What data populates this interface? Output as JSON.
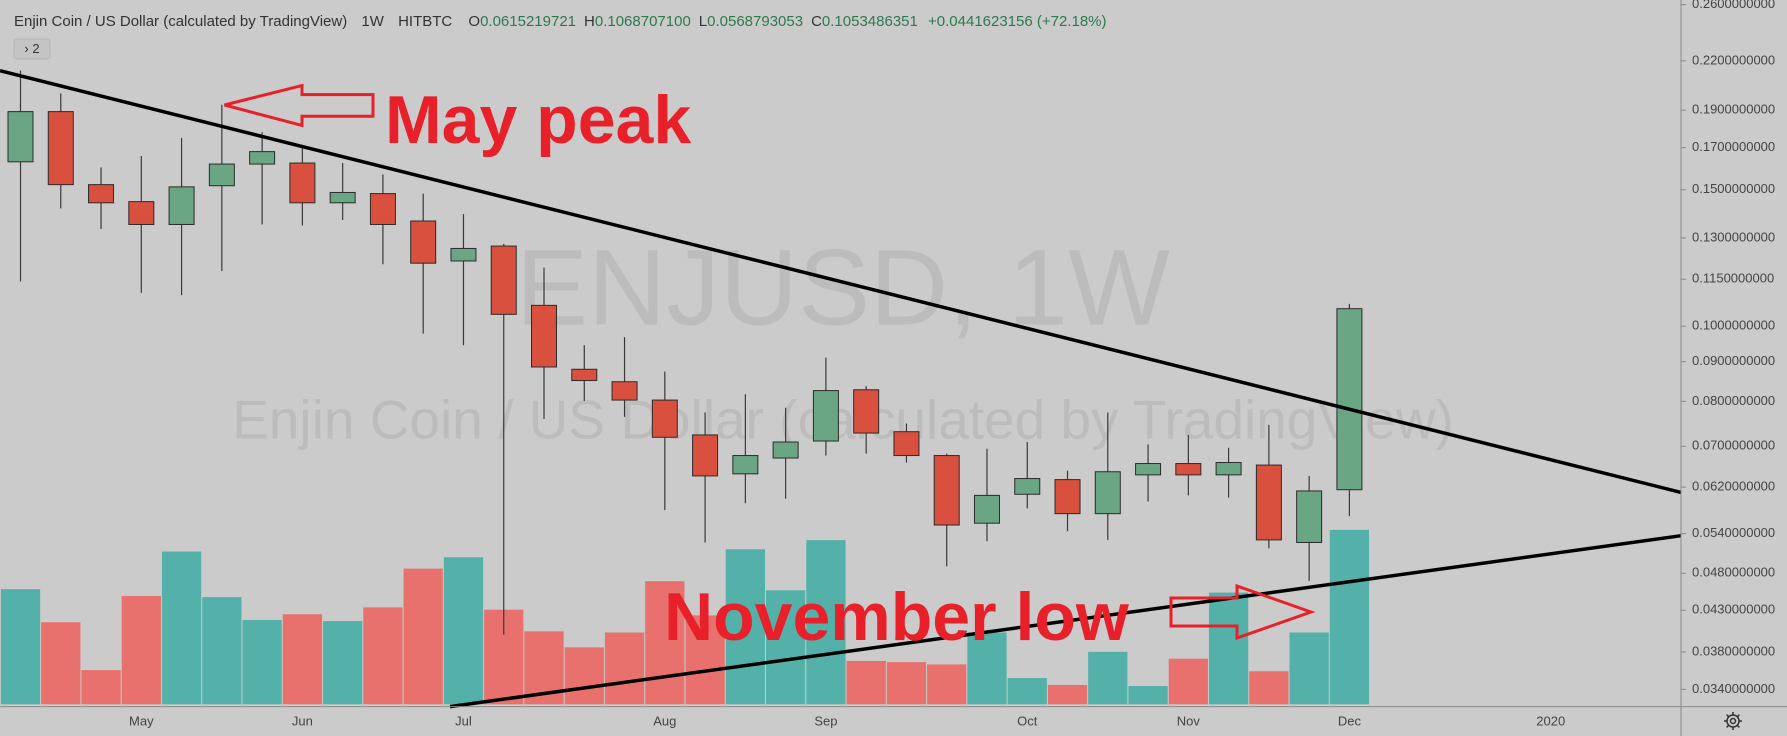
{
  "chart_data": {
    "type": "candlestick",
    "title": "Enjin Coin / US Dollar (calculated by TradingView)",
    "interval": "1W",
    "exchange": "HITBTC",
    "ohlc_legend": [
      {
        "label": "O",
        "value": "0.0615219721"
      },
      {
        "label": "H",
        "value": "0.1068707100"
      },
      {
        "label": "L",
        "value": "0.0568793053"
      },
      {
        "label": "C",
        "value": "0.1053486351"
      }
    ],
    "change": "+0.0441623156 (+72.18%)",
    "pane_toggle": "› 2",
    "watermark": {
      "symbol": "ENJUSD, 1W",
      "description": "Enjin Coin / US Dollar (calculated by TradingView)"
    },
    "annotations": [
      "May peak",
      "November low"
    ],
    "categories": [
      null,
      null,
      null,
      "May",
      null,
      null,
      null,
      "Jun",
      null,
      null,
      null,
      "Jul",
      null,
      null,
      null,
      null,
      "Aug",
      null,
      null,
      null,
      "Sep",
      null,
      null,
      null,
      null,
      "Oct",
      null,
      null,
      null,
      "Nov",
      null,
      null,
      null,
      "Dec",
      null,
      null,
      null,
      null,
      "2020"
    ],
    "open": [
      0.163,
      0.1892,
      0.1523,
      0.1448,
      0.1353,
      0.1518,
      0.1619,
      0.1624,
      0.1443,
      0.1483,
      0.1367,
      0.1214,
      0.1269,
      0.1064,
      0.088,
      0.0848,
      0.0803,
      0.0724,
      0.0645,
      0.0676,
      0.0711,
      0.0828,
      0.0731,
      0.0681,
      0.0557,
      0.0607,
      0.0634,
      0.0573,
      0.0643,
      0.0665,
      0.0643,
      0.0662,
      0.0526,
      0.0615219721,
      null,
      null,
      null,
      null,
      null
    ],
    "high": [
      0.2137,
      0.1997,
      0.1603,
      0.1658,
      0.175,
      0.1931,
      0.178,
      0.1698,
      0.1624,
      0.157,
      0.1483,
      0.1395,
      0.1277,
      0.119,
      0.0945,
      0.0968,
      0.0874,
      0.0774,
      0.0817,
      0.0785,
      0.0911,
      0.0837,
      0.0749,
      0.0685,
      0.0695,
      0.0709,
      0.0651,
      0.0774,
      0.0704,
      0.0724,
      0.0697,
      0.0746,
      0.0641,
      0.10687071,
      null,
      null,
      null,
      null,
      null
    ],
    "low": [
      0.1142,
      0.1419,
      0.1335,
      0.1104,
      0.1097,
      0.1178,
      0.1353,
      0.1349,
      0.1371,
      0.1202,
      0.0978,
      0.0945,
      0.04,
      0.0759,
      0.0801,
      0.0764,
      0.0579,
      0.0526,
      0.0591,
      0.0599,
      0.0681,
      0.0685,
      0.0667,
      0.049,
      0.0528,
      0.0582,
      0.0544,
      0.053,
      0.0594,
      0.0605,
      0.0601,
      0.0517,
      0.0469,
      0.0568793053,
      null,
      null,
      null,
      null,
      null
    ],
    "close": [
      0.1892,
      0.1523,
      0.1443,
      0.1353,
      0.1513,
      0.1619,
      0.168,
      0.1443,
      0.1488,
      0.1353,
      0.1206,
      0.126,
      0.1036,
      0.0886,
      0.0851,
      0.0803,
      0.0719,
      0.0641,
      0.0681,
      0.0709,
      0.0826,
      0.0728,
      0.0681,
      0.0554,
      0.0605,
      0.0636,
      0.0573,
      0.0649,
      0.0665,
      0.0643,
      0.0667,
      0.053,
      0.0613,
      0.1053486351,
      null,
      null,
      null,
      null,
      null
    ],
    "volume": [
      101,
      72,
      30,
      95,
      134,
      94,
      74,
      79,
      73,
      85,
      119,
      129,
      83,
      64,
      50,
      63,
      108,
      78,
      136,
      100,
      144,
      38,
      37,
      35,
      63,
      23,
      17,
      46,
      16,
      40,
      98,
      29,
      63,
      153,
      null,
      null,
      null,
      null,
      null
    ],
    "up_color": "#6aa584",
    "down_color": "#d9503f",
    "volume_up_color": "#53b1a9",
    "volume_down_color": "#e8716d",
    "log_y": true,
    "ylim": [
      0.0323,
      0.2636
    ],
    "yticks": [
      {
        "value": 0.26,
        "label": "0.2600000000"
      },
      {
        "value": 0.22,
        "label": "0.2200000000"
      },
      {
        "value": 0.19,
        "label": "0.1900000000"
      },
      {
        "value": 0.17,
        "label": "0.1700000000"
      },
      {
        "value": 0.15,
        "label": "0.1500000000"
      },
      {
        "value": 0.13,
        "label": "0.1300000000"
      },
      {
        "value": 0.115,
        "label": "0.1150000000"
      },
      {
        "value": 0.1,
        "label": "0.1000000000"
      },
      {
        "value": 0.09,
        "label": "0.0900000000"
      },
      {
        "value": 0.08,
        "label": "0.0800000000"
      },
      {
        "value": 0.07,
        "label": "0.0700000000"
      },
      {
        "value": 0.062,
        "label": "0.0620000000"
      },
      {
        "value": 0.054,
        "label": "0.0540000000"
      },
      {
        "value": 0.048,
        "label": "0.0480000000"
      },
      {
        "value": 0.043,
        "label": "0.0430000000"
      },
      {
        "value": 0.038,
        "label": "0.0380000000"
      },
      {
        "value": 0.034,
        "label": "0.0340000000"
      }
    ]
  }
}
